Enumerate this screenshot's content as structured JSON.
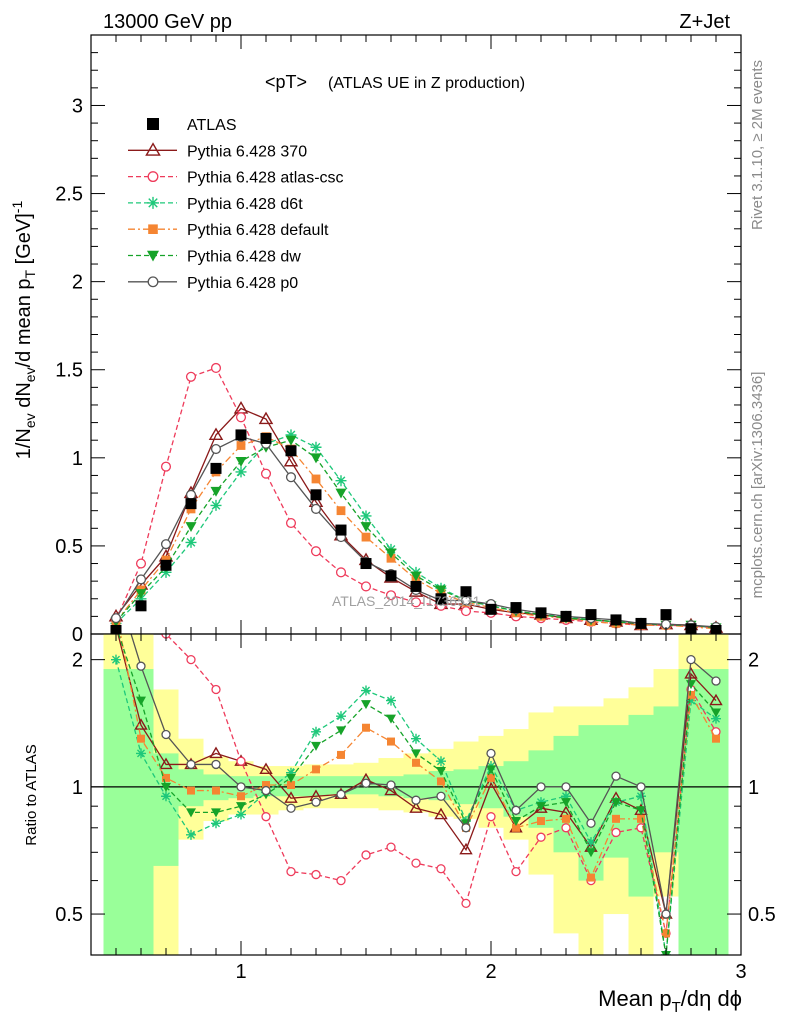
{
  "header": {
    "left": "13000 GeV pp",
    "right": "Z+Jet",
    "title": "<pT>",
    "title_suffix": "(ATLAS UE in Z production)",
    "watermark": "ATLAS_2014_I1736531",
    "side_top": "Rivet 3.1.10, ≥ 2M events",
    "side_bottom": "mcplots.cern.ch [arXiv:1306.3436]"
  },
  "axes": {
    "ylabel_main": "1/N_ev dN_ev/d mean p_T [GeV]^-1",
    "ylabel_ratio": "Ratio to ATLAS",
    "xlabel": "Mean p_T/dη dφ",
    "x_ticks": [
      "1",
      "2",
      "3"
    ],
    "y_ticks_main": [
      "0",
      "0.5",
      "1",
      "1.5",
      "2",
      "2.5",
      "3"
    ],
    "y_ticks_ratio": [
      "0.5",
      "1",
      "2"
    ]
  },
  "chart_data": {
    "type": "line",
    "x": [
      0.5,
      0.6,
      0.7,
      0.8,
      0.9,
      1.0,
      1.1,
      1.2,
      1.3,
      1.4,
      1.5,
      1.6,
      1.7,
      1.8,
      1.9,
      2.0,
      2.1,
      2.2,
      2.3,
      2.4,
      2.5,
      2.6,
      2.7,
      2.8,
      2.9
    ],
    "xlim": [
      0.4,
      3.0
    ],
    "ylim_main": [
      0,
      3.4
    ],
    "ylim_ratio": [
      0.4,
      2.3
    ],
    "ratio_scale": "log",
    "legend_position": "top-left",
    "data": {
      "name": "ATLAS",
      "values": [
        0.02,
        0.16,
        0.39,
        0.74,
        0.94,
        1.13,
        1.11,
        1.04,
        0.79,
        0.59,
        0.4,
        0.33,
        0.27,
        0.2,
        0.24,
        0.14,
        0.15,
        0.12,
        0.1,
        0.11,
        0.08,
        0.06,
        0.11,
        0.03,
        0.02
      ]
    },
    "series": [
      {
        "name": "Pythia 6.428 370",
        "color": "#8b1a1a",
        "marker": "triangle-open",
        "dash": "solid",
        "values": [
          0.1,
          0.28,
          0.44,
          0.8,
          1.13,
          1.28,
          1.22,
          0.98,
          0.75,
          0.56,
          0.42,
          0.32,
          0.24,
          0.17,
          0.17,
          0.14,
          0.12,
          0.11,
          0.09,
          0.08,
          0.07,
          0.05,
          0.055,
          0.05,
          0.035
        ],
        "ratio": [
          2.4,
          1.4,
          1.13,
          1.13,
          1.2,
          1.15,
          1.1,
          0.94,
          0.95,
          0.96,
          1.04,
          0.98,
          0.89,
          0.86,
          0.71,
          1.02,
          0.8,
          0.89,
          0.87,
          0.72,
          0.94,
          0.88,
          0.5,
          1.85,
          1.6
        ]
      },
      {
        "name": "Pythia 6.428 atlas-csc",
        "color": "#ee3b5b",
        "marker": "circle-open",
        "dash": "dashed",
        "values": [
          0.08,
          0.4,
          0.95,
          1.46,
          1.51,
          1.23,
          0.91,
          0.63,
          0.47,
          0.35,
          0.27,
          0.22,
          0.18,
          0.16,
          0.13,
          0.12,
          0.1,
          0.09,
          0.08,
          0.07,
          0.06,
          0.05,
          0.05,
          0.045,
          0.035
        ],
        "ratio": [
          3.5,
          2.6,
          2.3,
          2.0,
          1.7,
          1.15,
          0.85,
          0.63,
          0.62,
          0.6,
          0.69,
          0.72,
          0.66,
          0.64,
          0.53,
          0.85,
          0.63,
          0.76,
          0.8,
          0.6,
          0.78,
          0.8,
          0.45,
          1.7,
          1.35
        ]
      },
      {
        "name": "Pythia 6.428 d6t",
        "color": "#1ec87a",
        "marker": "asterisk",
        "dash": "dashed",
        "values": [
          0.06,
          0.2,
          0.35,
          0.52,
          0.73,
          0.92,
          1.08,
          1.13,
          1.06,
          0.87,
          0.67,
          0.48,
          0.35,
          0.26,
          0.19,
          0.16,
          0.13,
          0.11,
          0.1,
          0.08,
          0.07,
          0.06,
          0.05,
          0.05,
          0.035
        ],
        "ratio": [
          2.0,
          1.2,
          0.95,
          0.77,
          0.82,
          0.86,
          0.97,
          1.08,
          1.35,
          1.47,
          1.69,
          1.6,
          1.3,
          1.15,
          0.83,
          1.12,
          0.88,
          0.92,
          0.95,
          0.74,
          0.92,
          0.95,
          0.4,
          1.6,
          1.45
        ]
      },
      {
        "name": "Pythia 6.428 default",
        "color": "#f58532",
        "marker": "square",
        "dash": "dashdot",
        "values": [
          0.07,
          0.25,
          0.42,
          0.71,
          0.92,
          1.07,
          1.12,
          1.05,
          0.88,
          0.7,
          0.55,
          0.43,
          0.31,
          0.23,
          0.18,
          0.15,
          0.12,
          0.1,
          0.09,
          0.07,
          0.06,
          0.05,
          0.05,
          0.04,
          0.03
        ],
        "ratio": [
          2.6,
          1.3,
          1.05,
          0.98,
          0.98,
          0.95,
          1.01,
          1.01,
          1.1,
          1.19,
          1.38,
          1.28,
          1.14,
          1.03,
          0.8,
          1.05,
          0.8,
          0.83,
          0.84,
          0.61,
          0.84,
          0.84,
          0.45,
          1.65,
          1.3
        ]
      },
      {
        "name": "Pythia 6.428 dw",
        "color": "#16a329",
        "marker": "triangle-down",
        "dash": "dashed",
        "values": [
          0.07,
          0.23,
          0.38,
          0.61,
          0.81,
          0.98,
          1.06,
          1.1,
          1.0,
          0.8,
          0.61,
          0.46,
          0.33,
          0.25,
          0.19,
          0.16,
          0.13,
          0.11,
          0.09,
          0.08,
          0.07,
          0.06,
          0.05,
          0.05,
          0.035
        ],
        "ratio": [
          2.4,
          1.6,
          1.0,
          0.87,
          0.87,
          0.9,
          0.96,
          1.05,
          1.25,
          1.36,
          1.57,
          1.45,
          1.2,
          1.09,
          0.82,
          1.1,
          0.83,
          0.9,
          0.92,
          0.7,
          0.92,
          0.88,
          0.4,
          1.75,
          1.5
        ]
      },
      {
        "name": "Pythia 6.428 p0",
        "color": "#555555",
        "marker": "circle-open",
        "dash": "solid",
        "values": [
          0.09,
          0.31,
          0.51,
          0.79,
          1.05,
          1.12,
          1.08,
          0.89,
          0.71,
          0.55,
          0.41,
          0.34,
          0.25,
          0.19,
          0.19,
          0.17,
          0.14,
          0.12,
          0.1,
          0.09,
          0.08,
          0.06,
          0.055,
          0.05,
          0.04
        ],
        "ratio": [
          3.0,
          1.93,
          1.33,
          1.13,
          1.13,
          1.0,
          0.98,
          0.89,
          0.92,
          0.96,
          1.02,
          1.01,
          0.93,
          0.95,
          0.8,
          1.2,
          0.88,
          1.0,
          1.0,
          0.82,
          1.06,
          1.0,
          0.5,
          2.0,
          1.78
        ]
      }
    ],
    "uncertainty_bands": {
      "bins": [
        0.45,
        0.55,
        0.65,
        0.75,
        0.85,
        0.95,
        1.05,
        1.15,
        1.25,
        1.35,
        1.45,
        1.55,
        1.65,
        1.75,
        1.85,
        1.95,
        2.05,
        2.15,
        2.25,
        2.35,
        2.45,
        2.55,
        2.65,
        2.75,
        2.85,
        2.95
      ],
      "yellow_low": [
        0.4,
        0.4,
        0.4,
        0.75,
        0.83,
        0.86,
        0.86,
        0.88,
        0.89,
        0.89,
        0.89,
        0.88,
        0.87,
        0.85,
        0.84,
        0.8,
        0.75,
        0.62,
        0.45,
        0.4,
        0.5,
        0.4,
        0.55,
        0.4,
        0.4
      ],
      "yellow_high": [
        2.3,
        2.3,
        1.7,
        1.3,
        1.18,
        1.15,
        1.12,
        1.12,
        1.13,
        1.13,
        1.14,
        1.17,
        1.2,
        1.23,
        1.28,
        1.32,
        1.37,
        1.5,
        1.55,
        1.55,
        1.62,
        1.72,
        1.9,
        2.3,
        2.3
      ],
      "green_low": [
        0.4,
        0.4,
        0.65,
        0.9,
        0.93,
        0.94,
        0.95,
        0.95,
        0.95,
        0.96,
        0.96,
        0.95,
        0.94,
        0.93,
        0.91,
        0.89,
        0.85,
        0.8,
        0.7,
        0.6,
        0.68,
        0.55,
        0.7,
        0.4,
        0.4
      ],
      "green_high": [
        1.9,
        1.9,
        1.2,
        1.1,
        1.07,
        1.06,
        1.06,
        1.06,
        1.06,
        1.06,
        1.06,
        1.06,
        1.07,
        1.09,
        1.1,
        1.12,
        1.15,
        1.22,
        1.32,
        1.4,
        1.4,
        1.48,
        1.55,
        1.9,
        1.9
      ]
    }
  }
}
